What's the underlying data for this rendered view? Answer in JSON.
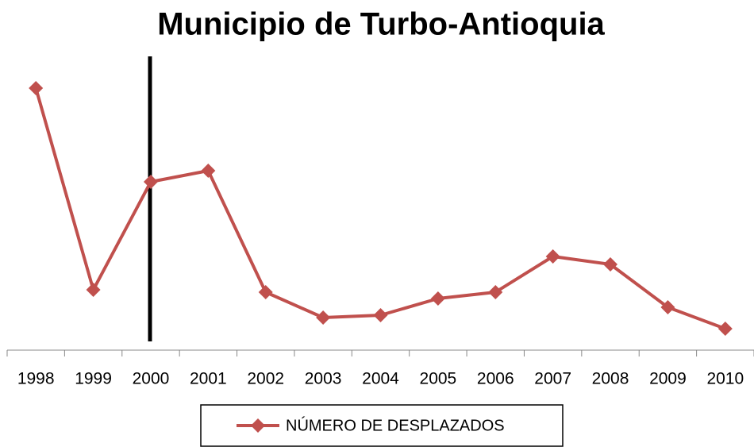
{
  "chart_data": {
    "type": "line",
    "title": "Municipio de Turbo-Antioquia",
    "categories": [
      "1998",
      "1999",
      "2000",
      "2001",
      "2002",
      "2003",
      "2004",
      "2005",
      "2006",
      "2007",
      "2008",
      "2009",
      "2010"
    ],
    "series": [
      {
        "name": "NÚMERO DE DESPLAZADOS",
        "color": "#c0504d",
        "values": [
          330,
          76,
          212,
          226,
          73,
          41,
          44,
          65,
          73,
          118,
          108,
          54,
          27
        ]
      }
    ],
    "ylim": [
      0,
      370
    ]
  }
}
